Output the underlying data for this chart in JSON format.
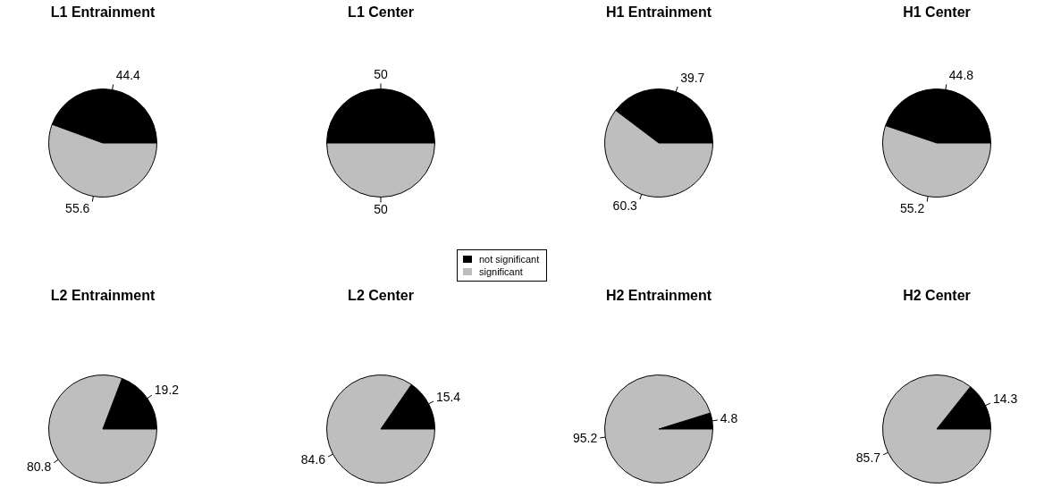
{
  "chart_data": [
    {
      "type": "pie",
      "title": "L1 Entrainment",
      "categories": [
        null,
        null
      ],
      "values": [
        44.4,
        55.6
      ],
      "colors": [
        "#000000",
        "#bebebe"
      ],
      "data_labels": true
    },
    {
      "type": "pie",
      "title": "L1 Center",
      "categories": [
        "not significant",
        "significant"
      ],
      "values": [
        50,
        50
      ],
      "colors": [
        "#000000",
        "#bebebe"
      ],
      "data_labels": true,
      "legend": "bottom right"
    },
    {
      "type": "pie",
      "title": "H1 Entrainment",
      "categories": [
        null,
        null
      ],
      "values": [
        39.7,
        60.3
      ],
      "colors": [
        "#000000",
        "#bebebe"
      ],
      "data_labels": true
    },
    {
      "type": "pie",
      "title": "H1 Center",
      "categories": [
        null,
        null
      ],
      "values": [
        44.8,
        55.2
      ],
      "colors": [
        "#000000",
        "#bebebe"
      ],
      "data_labels": true
    },
    {
      "type": "pie",
      "title": "L2 Entrainment",
      "categories": [
        null,
        null
      ],
      "values": [
        19.2,
        80.8
      ],
      "colors": [
        "#000000",
        "#bebebe"
      ],
      "data_labels": true
    },
    {
      "type": "pie",
      "title": "L2 Center",
      "categories": [
        null,
        null
      ],
      "values": [
        15.4,
        84.6
      ],
      "colors": [
        "#000000",
        "#bebebe"
      ],
      "data_labels": true
    },
    {
      "type": "pie",
      "title": "H2 Entrainment",
      "categories": [
        null,
        null
      ],
      "values": [
        4.8,
        95.2
      ],
      "colors": [
        "#000000",
        "#bebebe"
      ],
      "data_labels": true
    },
    {
      "type": "pie",
      "title": "H2 Center",
      "categories": [
        null,
        null
      ],
      "values": [
        14.3,
        85.7
      ],
      "colors": [
        "#000000",
        "#bebebe"
      ],
      "data_labels": true
    }
  ]
}
